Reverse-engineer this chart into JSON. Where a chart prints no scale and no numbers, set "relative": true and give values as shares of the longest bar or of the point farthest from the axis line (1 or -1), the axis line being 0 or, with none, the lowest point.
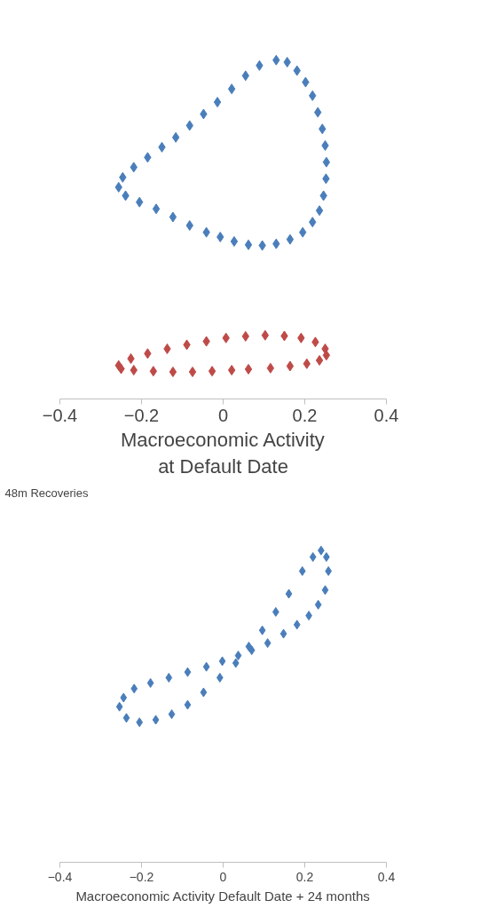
{
  "chart_data": [
    {
      "type": "scatter",
      "xlabel": "Macroeconomic Activity\nat Default Date",
      "relative": true,
      "marker": "diamond",
      "xlim": [
        -0.4,
        0.4
      ],
      "xticks": [
        -0.4,
        -0.2,
        0,
        0.2,
        0.4
      ],
      "series": [
        {
          "color": "#4a7ebb",
          "x": [
            0.13,
            0.157,
            0.181,
            0.202,
            0.219,
            0.232,
            0.243,
            0.25,
            0.253,
            0.252,
            0.246,
            0.236,
            0.219,
            0.195,
            0.164,
            0.13,
            0.096,
            0.062,
            0.027,
            -0.007,
            -0.041,
            -0.082,
            -0.123,
            -0.164,
            -0.205,
            -0.239,
            -0.256,
            -0.246,
            -0.219,
            -0.185,
            -0.15,
            -0.116,
            -0.082,
            -0.048,
            -0.014,
            0.021,
            0.055,
            0.089
          ],
          "values": [
            1.0,
            0.994,
            0.969,
            0.935,
            0.895,
            0.846,
            0.797,
            0.748,
            0.699,
            0.65,
            0.6,
            0.556,
            0.522,
            0.492,
            0.471,
            0.458,
            0.453,
            0.455,
            0.465,
            0.478,
            0.492,
            0.512,
            0.537,
            0.561,
            0.581,
            0.6,
            0.625,
            0.654,
            0.684,
            0.713,
            0.743,
            0.772,
            0.807,
            0.841,
            0.876,
            0.915,
            0.954,
            0.984
          ]
        },
        {
          "color": "#be4b48",
          "x": [
            -0.256,
            -0.226,
            -0.185,
            -0.137,
            -0.089,
            -0.041,
            0.007,
            0.055,
            0.103,
            0.15,
            0.191,
            0.226,
            0.25,
            0.253,
            0.236,
            0.205,
            0.164,
            0.116,
            0.062,
            0.021,
            -0.027,
            -0.075,
            -0.123,
            -0.171,
            -0.219,
            -0.25
          ],
          "values": [
            0.099,
            0.119,
            0.134,
            0.148,
            0.16,
            0.17,
            0.18,
            0.185,
            0.188,
            0.186,
            0.18,
            0.168,
            0.148,
            0.129,
            0.114,
            0.104,
            0.097,
            0.091,
            0.088,
            0.085,
            0.082,
            0.08,
            0.08,
            0.082,
            0.085,
            0.089
          ]
        }
      ]
    },
    {
      "type": "scatter",
      "title": "48m Recoveries",
      "xlabel": "Macroeconomic Activity Default Date + 24 months",
      "relative": true,
      "marker": "diamond",
      "xlim": [
        -0.4,
        0.4
      ],
      "xticks": [
        -0.4,
        -0.2,
        0,
        0.2,
        0.4
      ],
      "series": [
        {
          "color": "#4a7ebb",
          "x": [
            0.24,
            0.253,
            0.258,
            0.25,
            0.233,
            0.21,
            0.181,
            0.148,
            0.109,
            0.07,
            0.037,
            -0.002,
            -0.041,
            -0.087,
            -0.133,
            -0.178,
            -0.218,
            -0.244,
            -0.254,
            -0.237,
            -0.205,
            -0.165,
            -0.126,
            -0.087,
            -0.048,
            -0.008,
            0.031,
            0.063,
            0.096,
            0.129,
            0.161,
            0.194,
            0.22
          ],
          "values": [
            1.0,
            0.979,
            0.934,
            0.873,
            0.826,
            0.791,
            0.762,
            0.733,
            0.703,
            0.68,
            0.663,
            0.645,
            0.627,
            0.61,
            0.592,
            0.575,
            0.557,
            0.528,
            0.499,
            0.463,
            0.449,
            0.457,
            0.475,
            0.505,
            0.545,
            0.592,
            0.639,
            0.692,
            0.744,
            0.803,
            0.861,
            0.934,
            0.979
          ]
        }
      ]
    }
  ]
}
